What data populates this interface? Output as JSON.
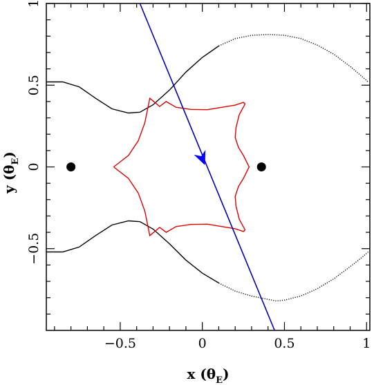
{
  "chart_data": {
    "type": "line",
    "xlim": [
      -0.95,
      1.02
    ],
    "ylim": [
      -1.0,
      1.0
    ],
    "grid": false,
    "legend": "none",
    "x_ticks": [
      -0.5,
      0,
      0.5,
      1
    ],
    "y_ticks": [
      -0.5,
      0,
      0.5,
      1
    ],
    "x_tick_labels": [
      "−0.5",
      "0",
      "0.5",
      "1"
    ],
    "y_tick_labels": [
      "−0.5",
      "0",
      "0.5",
      "1"
    ],
    "xlabel": {
      "main": "x (θ",
      "sub": "E",
      "close": ")"
    },
    "ylabel": {
      "main": "y (θ",
      "sub": "E",
      "close": ")"
    },
    "lenses": [
      {
        "x": -0.8,
        "y": 0.0
      },
      {
        "x": 0.36,
        "y": 0.0
      }
    ],
    "critical_curve_upper": [
      [
        -0.95,
        0.52
      ],
      [
        -0.85,
        0.52
      ],
      [
        -0.75,
        0.49
      ],
      [
        -0.65,
        0.42
      ],
      [
        -0.55,
        0.355
      ],
      [
        -0.45,
        0.33
      ],
      [
        -0.38,
        0.335
      ],
      [
        -0.3,
        0.38
      ],
      [
        -0.2,
        0.47
      ],
      [
        -0.1,
        0.58
      ],
      [
        0.0,
        0.67
      ],
      [
        0.1,
        0.74
      ],
      [
        0.2,
        0.785
      ],
      [
        0.3,
        0.805
      ],
      [
        0.4,
        0.81
      ],
      [
        0.5,
        0.805
      ],
      [
        0.6,
        0.785
      ],
      [
        0.7,
        0.745
      ],
      [
        0.8,
        0.69
      ],
      [
        0.9,
        0.615
      ],
      [
        0.97,
        0.555
      ],
      [
        1.01,
        0.52
      ]
    ],
    "critical_curve_lower": [
      [
        -0.95,
        -0.52
      ],
      [
        -0.85,
        -0.52
      ],
      [
        -0.75,
        -0.49
      ],
      [
        -0.65,
        -0.42
      ],
      [
        -0.55,
        -0.355
      ],
      [
        -0.45,
        -0.33
      ],
      [
        -0.38,
        -0.335
      ],
      [
        -0.3,
        -0.38
      ],
      [
        -0.2,
        -0.47
      ],
      [
        -0.1,
        -0.57
      ],
      [
        0.0,
        -0.65
      ],
      [
        0.1,
        -0.71
      ],
      [
        0.2,
        -0.76
      ],
      [
        0.3,
        -0.79
      ],
      [
        0.4,
        -0.81
      ],
      [
        0.45,
        -0.82
      ],
      [
        0.5,
        -0.815
      ],
      [
        0.6,
        -0.79
      ],
      [
        0.7,
        -0.745
      ],
      [
        0.8,
        -0.685
      ],
      [
        0.9,
        -0.61
      ],
      [
        0.97,
        -0.555
      ],
      [
        1.01,
        -0.52
      ]
    ],
    "caustic": [
      [
        -0.54,
        0.0
      ],
      [
        -0.45,
        0.07
      ],
      [
        -0.39,
        0.16
      ],
      [
        -0.35,
        0.27
      ],
      [
        -0.32,
        0.42
      ],
      [
        -0.29,
        0.395
      ],
      [
        -0.26,
        0.37
      ],
      [
        -0.22,
        0.4
      ],
      [
        -0.16,
        0.365
      ],
      [
        -0.07,
        0.352
      ],
      [
        0.03,
        0.35
      ],
      [
        0.12,
        0.365
      ],
      [
        0.2,
        0.378
      ],
      [
        0.25,
        0.395
      ],
      [
        0.26,
        0.385
      ],
      [
        0.225,
        0.32
      ],
      [
        0.205,
        0.24
      ],
      [
        0.2,
        0.18
      ],
      [
        0.22,
        0.12
      ],
      [
        0.25,
        0.07
      ],
      [
        0.285,
        0.0
      ],
      [
        0.25,
        -0.07
      ],
      [
        0.22,
        -0.12
      ],
      [
        0.2,
        -0.18
      ],
      [
        0.205,
        -0.24
      ],
      [
        0.225,
        -0.32
      ],
      [
        0.26,
        -0.385
      ],
      [
        0.25,
        -0.395
      ],
      [
        0.2,
        -0.378
      ],
      [
        0.12,
        -0.365
      ],
      [
        0.03,
        -0.35
      ],
      [
        -0.07,
        -0.352
      ],
      [
        -0.16,
        -0.365
      ],
      [
        -0.22,
        -0.4
      ],
      [
        -0.26,
        -0.37
      ],
      [
        -0.29,
        -0.395
      ],
      [
        -0.32,
        -0.42
      ],
      [
        -0.35,
        -0.27
      ],
      [
        -0.39,
        -0.16
      ],
      [
        -0.45,
        -0.07
      ],
      [
        -0.54,
        0.0
      ]
    ],
    "source_trajectory": [
      [
        -0.38,
        1.0
      ],
      [
        0.44,
        -1.0
      ]
    ],
    "trajectory_arrow": [
      0.0,
      0.05
    ],
    "colors": {
      "critical_curve": "#000000",
      "caustic": "#dd0000",
      "trajectory": "#0000b3",
      "arrow": "#0000ff",
      "lens": "#000000",
      "frame": "#000000"
    }
  }
}
